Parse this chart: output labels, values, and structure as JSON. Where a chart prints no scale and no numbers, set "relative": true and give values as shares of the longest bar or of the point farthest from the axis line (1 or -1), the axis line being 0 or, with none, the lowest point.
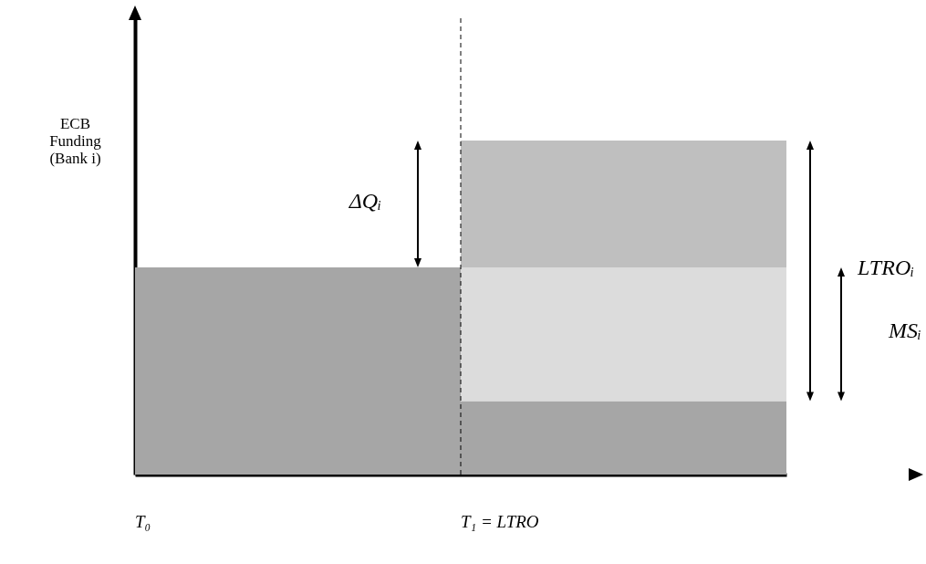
{
  "chart_data": {
    "type": "bar",
    "stacked": true,
    "relative": true,
    "ylabel": "ECB Funding (Bank i)",
    "categories": [
      "T₀",
      "T₁ = LTRO"
    ],
    "series": [
      {
        "color": "#a6a6a6",
        "values": [
          0.62,
          0.22
        ]
      },
      {
        "color": "#dcdcdc",
        "values": [
          null,
          0.4
        ]
      },
      {
        "color": "#bfbfbf",
        "values": [
          null,
          0.38
        ]
      }
    ],
    "ref_lines": [
      {
        "axis": "x",
        "value": "T₁ = LTRO",
        "line_style": "dashed",
        "color": "#000000"
      }
    ],
    "annotations": [
      "ΔQᵢ",
      "LTROᵢ",
      "MSᵢ"
    ],
    "legend": false,
    "grid": false
  }
}
